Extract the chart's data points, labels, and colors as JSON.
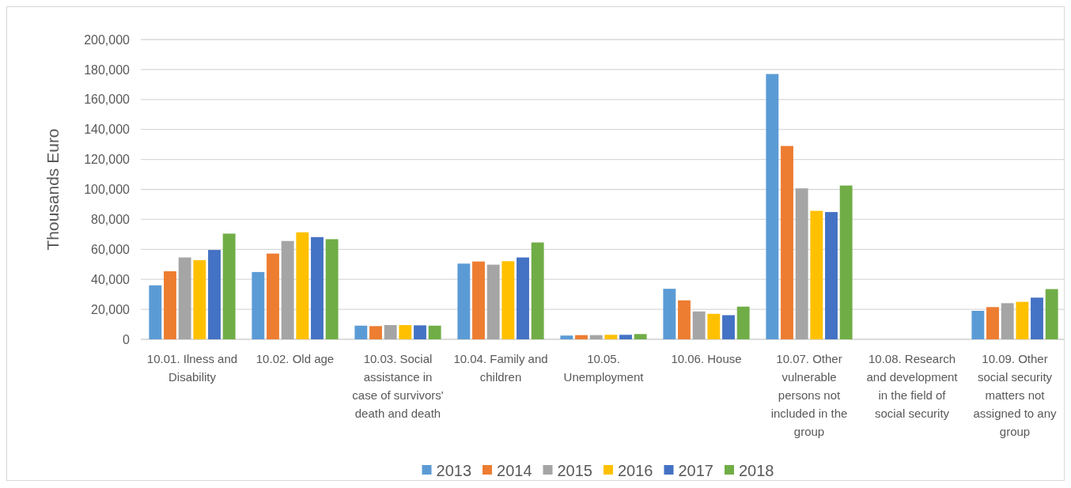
{
  "chart_data": {
    "type": "bar",
    "ylabel": "Thousands Euro",
    "categories": [
      "10.01. Ilness and Disability",
      "10.02. Old age",
      "10.03. Social assistance in case of survivors' death and death",
      "10.04. Family and children",
      "10.05. Unemployment",
      "10.06. House",
      "10.07. Other vulnerable persons not included in the group",
      "10.08. Research and development in the field of social security",
      "10.09. Other social security matters not assigned to any group"
    ],
    "series": [
      {
        "name": "2013",
        "color": "#5b9bd5",
        "values": [
          36000,
          44900,
          9100,
          50500,
          2500,
          33700,
          177000,
          null,
          19000
        ]
      },
      {
        "name": "2014",
        "color": "#ed7d31",
        "values": [
          45400,
          57200,
          8800,
          51900,
          2800,
          26000,
          129000,
          null,
          21500
        ]
      },
      {
        "name": "2015",
        "color": "#a5a5a5",
        "values": [
          54600,
          65600,
          9500,
          49800,
          2800,
          18600,
          100700,
          null,
          24100
        ]
      },
      {
        "name": "2016",
        "color": "#ffc000",
        "values": [
          52800,
          71400,
          9500,
          52100,
          3000,
          17000,
          85700,
          null,
          25000
        ]
      },
      {
        "name": "2017",
        "color": "#4472c4",
        "values": [
          59600,
          68200,
          9300,
          54600,
          3000,
          16100,
          84900,
          null,
          27800
        ]
      },
      {
        "name": "2018",
        "color": "#70ad47",
        "values": [
          70500,
          66800,
          9100,
          64600,
          3500,
          21800,
          102600,
          null,
          33500
        ]
      }
    ],
    "ylim": [
      0,
      200000
    ],
    "yticks": [
      {
        "value": 0,
        "label": "0"
      },
      {
        "value": 20000,
        "label": "20,000"
      },
      {
        "value": 40000,
        "label": "40,000"
      },
      {
        "value": 60000,
        "label": "60,000"
      },
      {
        "value": 80000,
        "label": "80,000"
      },
      {
        "value": 100000,
        "label": "100,000"
      },
      {
        "value": 120000,
        "label": "120,000"
      },
      {
        "value": 140000,
        "label": "140,000"
      },
      {
        "value": 160000,
        "label": "160,000"
      },
      {
        "value": 180000,
        "label": "180,000"
      },
      {
        "value": 200000,
        "label": "200,000"
      }
    ],
    "grid": "y",
    "legend": "bottom"
  }
}
